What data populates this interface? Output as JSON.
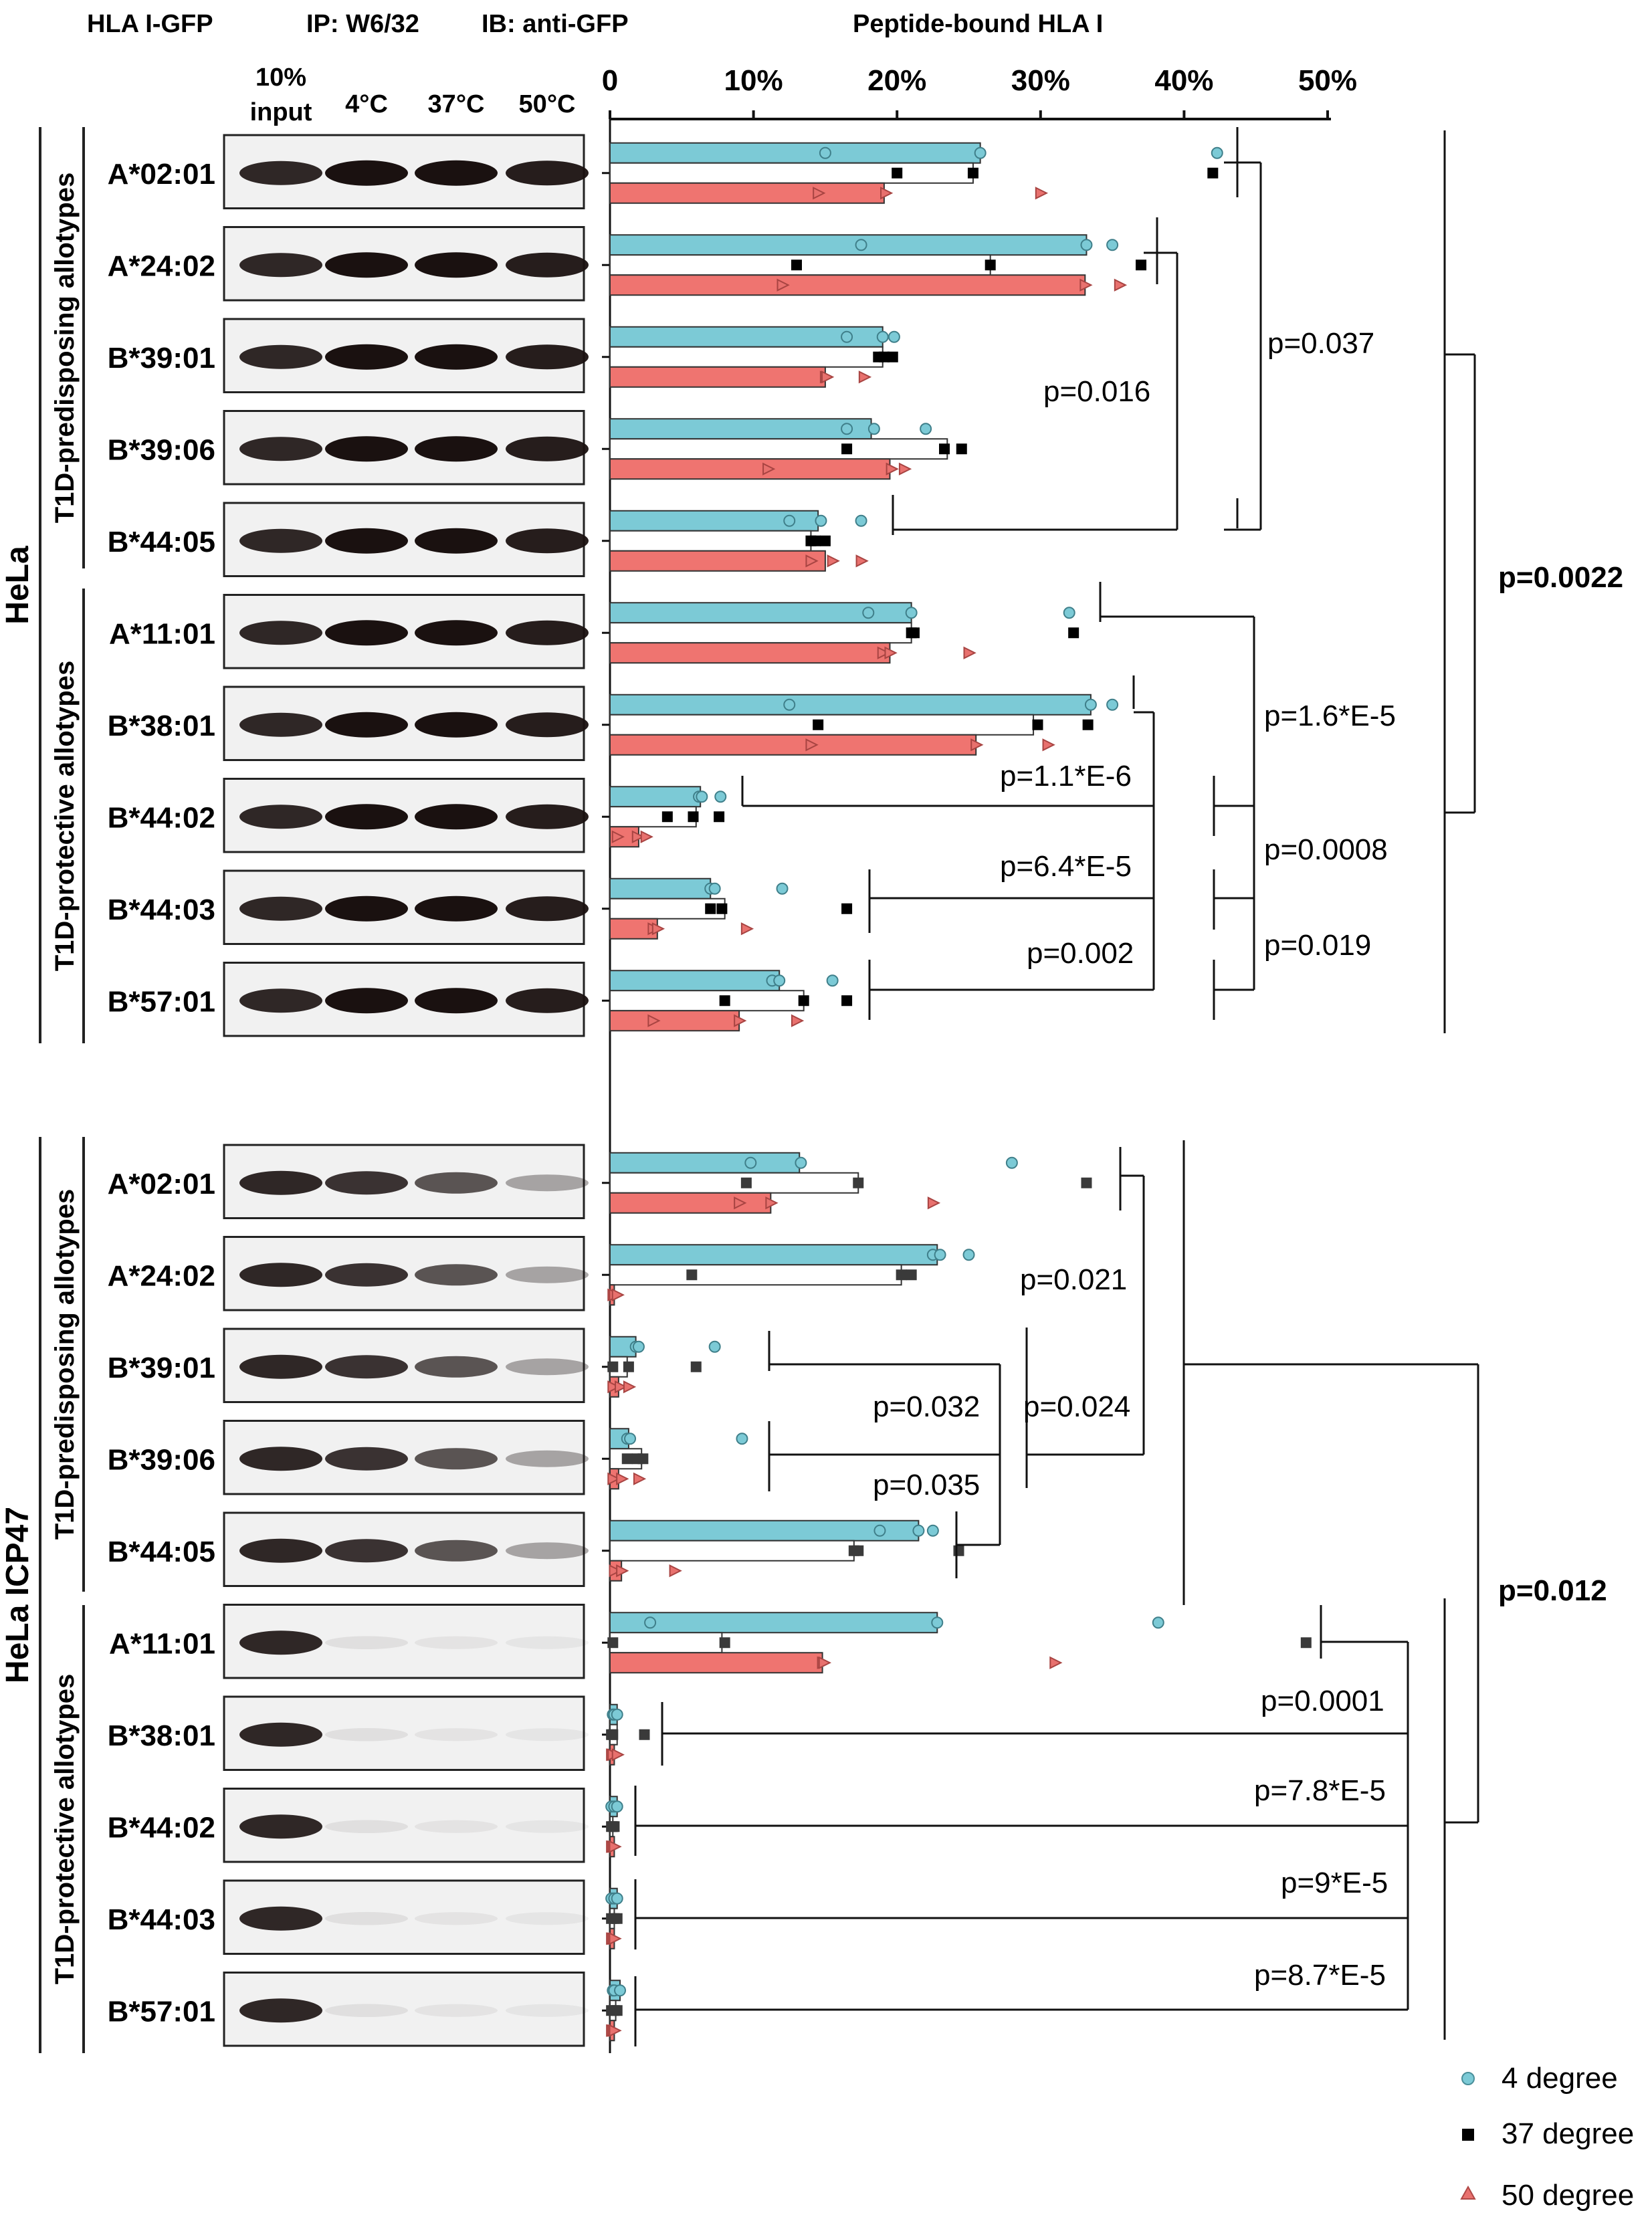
{
  "header": {
    "construct": "HLA I-GFP",
    "ip": "IP: W6/32",
    "ib": "IB: anti-GFP",
    "chart_title": "Peptide-bound HLA I"
  },
  "blot_columns": [
    "10%\ninput",
    "4°C",
    "37°C",
    "50°C"
  ],
  "blot_columns_display": [
    "10%",
    "input",
    "4°C",
    "37°C",
    "50°C"
  ],
  "cell_lines": [
    "HeLa",
    "HeLa ICP47"
  ],
  "groups": [
    "T1D-predisposing allotypes",
    "T1D-protective allotypes",
    "T1D-predisposing allotypes",
    "T1D-protective allotypes"
  ],
  "colors": {
    "deg4": "#7ccad6",
    "deg37": "#ffffff",
    "deg50": "#ef7470",
    "marker37": "#000000",
    "marker37_icp": "#3a3a3a",
    "marker50": "#e8716e",
    "marker4": "#7ccad6"
  },
  "legend": [
    "4 degree",
    "37 degree",
    "50 degree"
  ],
  "pvalues": {
    "hela": [
      "p=0.037",
      "p=0.016",
      "p=1.6*E-5",
      "p=1.1*E-6",
      "p=0.0008",
      "p=6.4*E-5",
      "p=0.019",
      "p=0.002",
      "p=0.0022"
    ],
    "icp47": [
      "p=0.021",
      "p=0.032",
      "p=0.024",
      "p=0.035",
      "p=0.0001",
      "p=7.8*E-5",
      "p=9*E-5",
      "p=8.7*E-5",
      "p=0.012"
    ]
  },
  "chart_data": {
    "type": "bar",
    "orientation": "horizontal",
    "title": "Peptide-bound HLA I",
    "xlim": [
      0,
      50
    ],
    "xticks": [
      "0",
      "10%",
      "20%",
      "30%",
      "40%",
      "50%"
    ],
    "series_names": [
      "4 degree",
      "37 degree",
      "50 degree"
    ],
    "panels": [
      {
        "cell_line": "HeLa",
        "rows": [
          {
            "allotype": "A*02:01",
            "group": "T1D-predisposing allotypes",
            "mean": [
              25.8,
              25.3,
              19.1
            ],
            "points": [
              [
                15,
                25.8,
                42.3
              ],
              [
                20,
                25.3,
                42
              ],
              [
                14.5,
                19.2,
                30
              ]
            ]
          },
          {
            "allotype": "A*24:02",
            "group": "T1D-predisposing allotypes",
            "mean": [
              33.2,
              26.5,
              33.1
            ],
            "points": [
              [
                17.5,
                33.2,
                35
              ],
              [
                13,
                26.5,
                37
              ],
              [
                12,
                33.1,
                35.5
              ]
            ]
          },
          {
            "allotype": "B*39:01",
            "group": "T1D-predisposing allotypes",
            "mean": [
              19.0,
              19.0,
              15.0
            ],
            "points": [
              [
                16.5,
                19,
                19.8
              ],
              [
                18.7,
                19.1,
                19.7
              ],
              [
                15,
                15.1,
                17.7
              ]
            ]
          },
          {
            "allotype": "B*39:06",
            "group": "T1D-predisposing allotypes",
            "mean": [
              18.2,
              23.5,
              19.5
            ],
            "points": [
              [
                16.5,
                18.4,
                22
              ],
              [
                16.5,
                23.3,
                24.5
              ],
              [
                11,
                19.6,
                20.5
              ]
            ]
          },
          {
            "allotype": "B*44:05",
            "group": "T1D-predisposing allotypes",
            "mean": [
              14.5,
              14.0,
              15.0
            ],
            "points": [
              [
                12.5,
                14.7,
                17.5
              ],
              [
                14,
                14.3,
                15
              ],
              [
                14,
                15.5,
                17.5
              ]
            ]
          },
          {
            "allotype": "A*11:01",
            "group": "T1D-protective allotypes",
            "mean": [
              21.0,
              21.0,
              19.5
            ],
            "points": [
              [
                18,
                21,
                32
              ],
              [
                21,
                21.2,
                32.3
              ],
              [
                19,
                19.5,
                25
              ]
            ]
          },
          {
            "allotype": "B*38:01",
            "group": "T1D-protective allotypes",
            "mean": [
              33.5,
              29.5,
              25.5
            ],
            "points": [
              [
                12.5,
                33.5,
                35
              ],
              [
                14.5,
                29.8,
                33.3
              ],
              [
                14,
                25.5,
                30.5
              ]
            ]
          },
          {
            "allotype": "B*44:02",
            "group": "T1D-protective allotypes",
            "mean": [
              6.3,
              6.0,
              2.0
            ],
            "points": [
              [
                6.2,
                6.4,
                7.7
              ],
              [
                4,
                5.8,
                7.6
              ],
              [
                0.5,
                1.9,
                2.5
              ]
            ]
          },
          {
            "allotype": "B*44:03",
            "group": "T1D-protective allotypes",
            "mean": [
              7.0,
              8.0,
              3.3
            ],
            "points": [
              [
                7,
                7.3,
                12
              ],
              [
                7,
                7.8,
                16.5
              ],
              [
                3,
                3.3,
                9.5
              ]
            ]
          },
          {
            "allotype": "B*57:01",
            "group": "T1D-protective allotypes",
            "mean": [
              11.8,
              13.5,
              9.0
            ],
            "points": [
              [
                11.3,
                11.8,
                15.5
              ],
              [
                8,
                13.5,
                16.5
              ],
              [
                3,
                9,
                13
              ]
            ]
          }
        ]
      },
      {
        "cell_line": "HeLa ICP47",
        "rows": [
          {
            "allotype": "A*02:01",
            "group": "T1D-predisposing allotypes",
            "mean": [
              13.2,
              17.3,
              11.2
            ],
            "points": [
              [
                9.8,
                13.3,
                28
              ],
              [
                9.5,
                17.3,
                33.2
              ],
              [
                9,
                11.2,
                22.5
              ]
            ]
          },
          {
            "allotype": "A*24:02",
            "group": "T1D-predisposing allotypes",
            "mean": [
              22.8,
              20.3,
              0.3
            ],
            "points": [
              [
                22.5,
                23,
                25
              ],
              [
                5.7,
                20.3,
                21
              ],
              [
                0.2,
                0.3,
                0.5
              ]
            ]
          },
          {
            "allotype": "B*39:01",
            "group": "T1D-predisposing allotypes",
            "mean": [
              1.8,
              1.2,
              0.6
            ],
            "points": [
              [
                1.8,
                2,
                7.3
              ],
              [
                0.2,
                1.3,
                6
              ],
              [
                0.2,
                0.7,
                1.3
              ]
            ]
          },
          {
            "allotype": "B*39:06",
            "group": "T1D-predisposing allotypes",
            "mean": [
              1.3,
              2.2,
              0.6
            ],
            "points": [
              [
                1.2,
                1.4,
                9.2
              ],
              [
                1.2,
                1.9,
                2.3
              ],
              [
                0.2,
                0.8,
                2
              ]
            ]
          },
          {
            "allotype": "B*44:05",
            "group": "T1D-predisposing allotypes",
            "mean": [
              21.5,
              17.0,
              0.8
            ],
            "points": [
              [
                18.8,
                21.5,
                22.5
              ],
              [
                17,
                17.3,
                24.3
              ],
              [
                0.3,
                0.8,
                4.5
              ]
            ]
          },
          {
            "allotype": "A*11:01",
            "group": "T1D-protective allotypes",
            "mean": [
              22.8,
              7.8,
              14.8
            ],
            "points": [
              [
                2.8,
                22.8,
                38.2
              ],
              [
                0.2,
                8,
                48.5
              ],
              [
                14.8,
                14.9,
                31
              ]
            ]
          },
          {
            "allotype": "B*38:01",
            "group": "T1D-protective allotypes",
            "mean": [
              0.5,
              0.5,
              0.3
            ],
            "points": [
              [
                0.2,
                0.3,
                0.5
              ],
              [
                0.1,
                0.2,
                2.4
              ],
              [
                0.1,
                0.2,
                0.5
              ]
            ]
          },
          {
            "allotype": "B*44:02",
            "group": "T1D-protective allotypes",
            "mean": [
              0.5,
              0.2,
              0.3
            ],
            "points": [
              [
                0.1,
                0.3,
                0.5
              ],
              [
                0.1,
                0.2,
                0.3
              ],
              [
                0.1,
                0.2,
                0.3
              ]
            ]
          },
          {
            "allotype": "B*44:03",
            "group": "T1D-protective allotypes",
            "mean": [
              0.5,
              0.3,
              0.3
            ],
            "points": [
              [
                0.1,
                0.3,
                0.5
              ],
              [
                0.1,
                0.3,
                0.5
              ],
              [
                0.1,
                0.2,
                0.3
              ]
            ]
          },
          {
            "allotype": "B*57:01",
            "group": "T1D-protective allotypes",
            "mean": [
              0.7,
              0.4,
              0.3
            ],
            "points": [
              [
                0.2,
                0.3,
                0.7
              ],
              [
                0.1,
                0.3,
                0.5
              ],
              [
                0.1,
                0.2,
                0.3
              ]
            ]
          }
        ]
      }
    ]
  }
}
